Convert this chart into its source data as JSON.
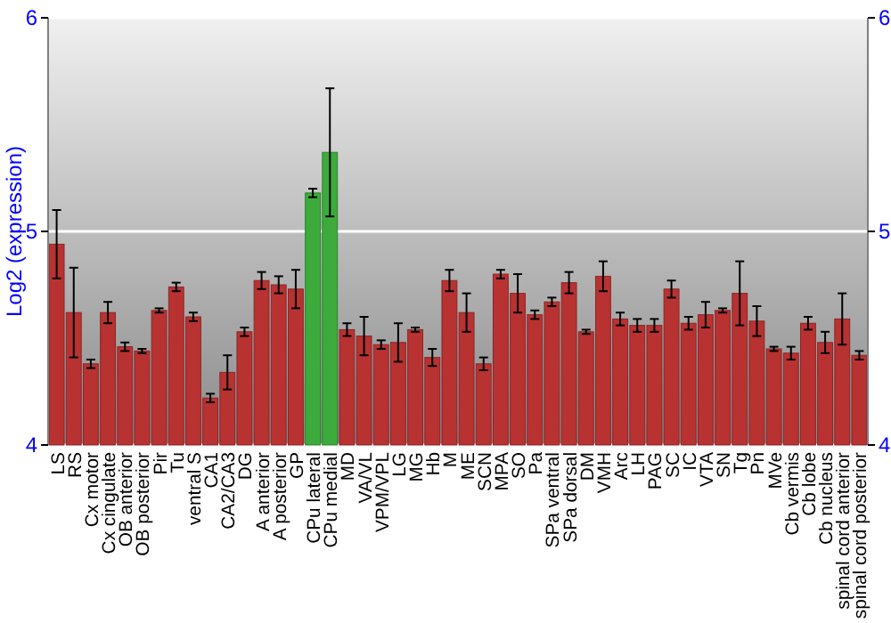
{
  "chart_data": {
    "type": "bar",
    "ylabel": "Log2 (expression)",
    "categories": [
      "LS",
      "RS",
      "Cx motor",
      "Cx cingulate",
      "OB anterior",
      "OB posterior",
      "Pir",
      "Tu",
      "ventral S",
      "CA1",
      "CA2/CA3",
      "DG",
      "A anterior",
      "A posterior",
      "GP",
      "CPu lateral",
      "CPu medial",
      "MD",
      "VA/VL",
      "VPM/VPL",
      "LG",
      "MG",
      "Hb",
      "M",
      "ME",
      "SCN",
      "MPA",
      "SO",
      "Pa",
      "SPa ventral",
      "SPa dorsal",
      "DM",
      "VMH",
      "Arc",
      "LH",
      "PAG",
      "SC",
      "IC",
      "VTA",
      "SN",
      "Tg",
      "Pn",
      "MVe",
      "Cb vermis",
      "Cb lobe",
      "Cb nucleus",
      "spinal cord anterior",
      "spinal cord posterior"
    ],
    "values": [
      4.94,
      4.62,
      4.38,
      4.62,
      4.46,
      4.44,
      4.63,
      4.74,
      4.6,
      4.22,
      4.34,
      4.53,
      4.77,
      4.75,
      4.73,
      5.18,
      5.37,
      4.54,
      4.51,
      4.47,
      4.48,
      4.54,
      4.41,
      4.77,
      4.62,
      4.38,
      4.8,
      4.71,
      4.61,
      4.67,
      4.76,
      4.53,
      4.79,
      4.59,
      4.56,
      4.56,
      4.73,
      4.57,
      4.61,
      4.63,
      4.71,
      4.58,
      4.45,
      4.43,
      4.57,
      4.48,
      4.59,
      4.42
    ],
    "errors": [
      0.16,
      0.21,
      0.02,
      0.05,
      0.02,
      0.01,
      0.01,
      0.02,
      0.02,
      0.02,
      0.08,
      0.02,
      0.04,
      0.04,
      0.09,
      0.02,
      0.3,
      0.03,
      0.09,
      0.02,
      0.09,
      0.01,
      0.04,
      0.05,
      0.09,
      0.03,
      0.02,
      0.09,
      0.02,
      0.02,
      0.05,
      0.01,
      0.07,
      0.03,
      0.03,
      0.03,
      0.04,
      0.03,
      0.06,
      0.01,
      0.15,
      0.07,
      0.01,
      0.03,
      0.03,
      0.05,
      0.12,
      0.02
    ],
    "colors": [
      "#b83232",
      "#b83232",
      "#b83232",
      "#b83232",
      "#b83232",
      "#b83232",
      "#b83232",
      "#b83232",
      "#b83232",
      "#b83232",
      "#b83232",
      "#b83232",
      "#b83232",
      "#b83232",
      "#b83232",
      "#3cab3c",
      "#3cab3c",
      "#b83232",
      "#b83232",
      "#b83232",
      "#b83232",
      "#b83232",
      "#b83232",
      "#b83232",
      "#b83232",
      "#b83232",
      "#b83232",
      "#b83232",
      "#b83232",
      "#b83232",
      "#b83232",
      "#b83232",
      "#b83232",
      "#b83232",
      "#b83232",
      "#b83232",
      "#b83232",
      "#b83232",
      "#b83232",
      "#b83232",
      "#b83232",
      "#b83232",
      "#b83232",
      "#b83232",
      "#b83232",
      "#b83232",
      "#b83232",
      "#b83232"
    ],
    "ylim": [
      4,
      6
    ],
    "yticks": [
      4,
      5,
      6
    ],
    "y2lim": [
      4,
      6
    ],
    "y2ticks": [
      4,
      5,
      6
    ],
    "grid": "y"
  }
}
